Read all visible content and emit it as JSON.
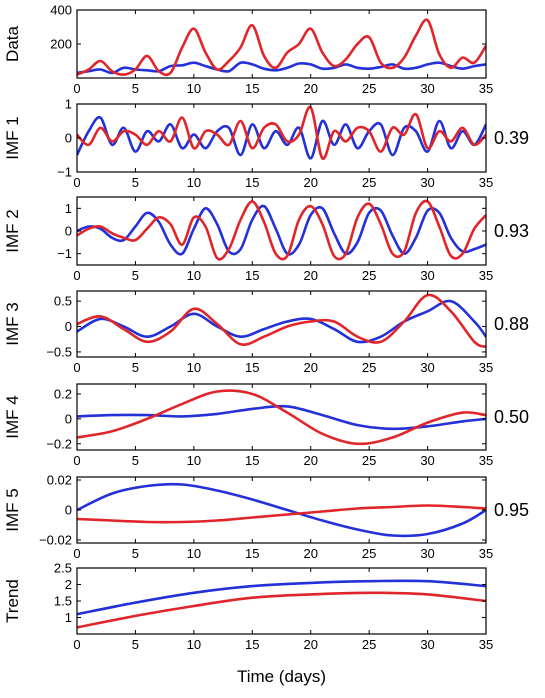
{
  "colors": {
    "series_a": "#2430d8",
    "series_b": "#e0262a",
    "axis": "#000000"
  },
  "chart_data": {
    "type": "line",
    "xlabel": "Time (days)",
    "xlim": [
      0,
      35
    ],
    "xticks": [
      "0",
      "5",
      "10",
      "15",
      "20",
      "25",
      "30",
      "35"
    ],
    "panels": [
      {
        "ylabel": "Data",
        "correlation": "",
        "ylim": [
          0,
          400
        ],
        "yticks": [
          {
            "v": 200,
            "t": "200"
          },
          {
            "v": 400,
            "t": "400"
          }
        ],
        "series": [
          {
            "x": [
              0,
              1,
              2,
              3,
              4,
              5,
              6,
              7,
              8,
              9,
              10,
              11,
              12,
              13,
              14,
              15,
              16,
              17,
              18,
              19,
              20,
              21,
              22,
              23,
              24,
              25,
              26,
              27,
              28,
              29,
              30,
              31,
              32,
              33,
              34,
              35
            ],
            "values": [
              30,
              40,
              50,
              30,
              60,
              50,
              45,
              40,
              70,
              75,
              90,
              70,
              50,
              40,
              90,
              80,
              55,
              45,
              60,
              85,
              80,
              55,
              60,
              80,
              60,
              55,
              65,
              80,
              55,
              60,
              80,
              90,
              70,
              55,
              70,
              80
            ]
          },
          {
            "x": [
              0,
              1,
              2,
              3,
              4,
              5,
              6,
              7,
              8,
              9,
              10,
              11,
              12,
              13,
              14,
              15,
              16,
              17,
              18,
              19,
              20,
              21,
              22,
              23,
              24,
              25,
              26,
              27,
              28,
              29,
              30,
              31,
              32,
              33,
              34,
              35
            ],
            "values": [
              20,
              50,
              100,
              40,
              20,
              50,
              130,
              40,
              30,
              180,
              290,
              150,
              50,
              100,
              180,
              310,
              130,
              60,
              150,
              200,
              290,
              150,
              70,
              110,
              200,
              240,
              90,
              60,
              120,
              250,
              340,
              140,
              60,
              120,
              90,
              190
            ]
          }
        ]
      },
      {
        "ylabel": "IMF 1",
        "correlation": "0.39",
        "ylim": [
          -1,
          1
        ],
        "yticks": [
          {
            "v": -1,
            "t": "−1"
          },
          {
            "v": 0,
            "t": "0"
          },
          {
            "v": 1,
            "t": "1"
          }
        ],
        "series": [
          {
            "x": [
              0,
              1,
              2,
              3,
              4,
              5,
              6,
              7,
              8,
              9,
              10,
              11,
              12,
              13,
              14,
              15,
              16,
              17,
              18,
              19,
              20,
              21,
              22,
              23,
              24,
              25,
              26,
              27,
              28,
              29,
              30,
              31,
              32,
              33,
              34,
              35
            ],
            "values": [
              -0.5,
              0.2,
              0.6,
              -0.2,
              0.3,
              -0.4,
              0.2,
              -0.1,
              0.4,
              -0.3,
              0.1,
              -0.3,
              0.2,
              0.3,
              -0.5,
              0.4,
              -0.3,
              0.2,
              -0.2,
              0.3,
              -0.6,
              0.5,
              -0.2,
              0.4,
              -0.3,
              0.2,
              0.4,
              -0.5,
              0.3,
              0.2,
              -0.4,
              0.5,
              -0.3,
              0.2,
              -0.2,
              0.4
            ]
          },
          {
            "x": [
              0,
              1,
              2,
              3,
              4,
              5,
              6,
              7,
              8,
              9,
              10,
              11,
              12,
              13,
              14,
              15,
              16,
              17,
              18,
              19,
              20,
              21,
              22,
              23,
              24,
              25,
              26,
              27,
              28,
              29,
              30,
              31,
              32,
              33,
              34,
              35
            ],
            "values": [
              0.1,
              -0.2,
              0.3,
              -0.1,
              0.2,
              0.1,
              -0.2,
              0.2,
              -0.1,
              0.6,
              -0.3,
              0.2,
              0.1,
              -0.2,
              0.5,
              -0.3,
              0.3,
              0.4,
              -0.1,
              0.1,
              0.9,
              -0.6,
              0.2,
              -0.1,
              0.3,
              0.2,
              -0.4,
              0.3,
              0.1,
              0.7,
              -0.3,
              0.2,
              -0.1,
              0.3,
              -0.2,
              0.1
            ]
          }
        ]
      },
      {
        "ylabel": "IMF 2",
        "correlation": "0.93",
        "ylim": [
          -1.5,
          1.5
        ],
        "yticks": [
          {
            "v": -1,
            "t": "−1"
          },
          {
            "v": 0,
            "t": "0"
          },
          {
            "v": 1,
            "t": "1"
          }
        ],
        "series": [
          {
            "x": [
              0,
              1,
              2,
              3,
              4,
              5,
              6,
              7,
              8,
              9,
              10,
              11,
              12,
              13,
              14,
              15,
              16,
              17,
              18,
              19,
              20,
              21,
              22,
              23,
              24,
              25,
              26,
              27,
              28,
              29,
              30,
              31,
              32,
              33,
              34,
              35
            ],
            "values": [
              0,
              0.2,
              0.1,
              -0.3,
              -0.4,
              0.2,
              0.8,
              0.4,
              -0.6,
              -1.0,
              0.1,
              1.0,
              0.3,
              -0.9,
              -0.8,
              0.5,
              1.1,
              0.1,
              -1.0,
              -0.6,
              0.7,
              1.0,
              -0.1,
              -1.0,
              -0.5,
              0.8,
              0.9,
              -0.2,
              -1.0,
              -0.3,
              0.9,
              0.8,
              -0.3,
              -0.9,
              -0.8,
              -0.6
            ]
          },
          {
            "x": [
              0,
              1,
              2,
              3,
              4,
              5,
              6,
              7,
              8,
              9,
              10,
              11,
              12,
              13,
              14,
              15,
              16,
              17,
              18,
              19,
              20,
              21,
              22,
              23,
              24,
              25,
              26,
              27,
              28,
              29,
              30,
              31,
              32,
              33,
              34,
              35
            ],
            "values": [
              -0.2,
              0.1,
              0.2,
              -0.1,
              -0.3,
              -0.4,
              0.1,
              0.6,
              0.3,
              -0.6,
              0.6,
              0.2,
              -1.2,
              -0.8,
              0.5,
              1.3,
              0.4,
              -1.0,
              -1.1,
              0.5,
              1.1,
              0.3,
              -1.1,
              -1.0,
              0.6,
              1.2,
              0.3,
              -1.0,
              -0.9,
              0.8,
              1.3,
              0.2,
              -1.1,
              -1.0,
              0.1,
              0.7
            ]
          }
        ]
      },
      {
        "ylabel": "IMF 3",
        "correlation": "0.88",
        "ylim": [
          -0.6,
          0.7
        ],
        "yticks": [
          {
            "v": -0.5,
            "t": "−0.5"
          },
          {
            "v": 0,
            "t": "0"
          },
          {
            "v": 0.5,
            "t": "0.5"
          }
        ],
        "series": [
          {
            "x": [
              0,
              2,
              4,
              6,
              8,
              10,
              12,
              14,
              16,
              18,
              20,
              22,
              24,
              26,
              28,
              30,
              32,
              34,
              35
            ],
            "values": [
              -0.1,
              0.15,
              0.0,
              -0.2,
              0.0,
              0.25,
              0.0,
              -0.2,
              -0.05,
              0.1,
              0.15,
              -0.05,
              -0.3,
              -0.2,
              0.1,
              0.3,
              0.5,
              0.1,
              -0.2
            ]
          },
          {
            "x": [
              0,
              2,
              4,
              6,
              8,
              10,
              12,
              14,
              16,
              18,
              20,
              22,
              24,
              26,
              28,
              30,
              32,
              34,
              35
            ],
            "values": [
              0.05,
              0.2,
              -0.05,
              -0.3,
              -0.1,
              0.35,
              0.05,
              -0.35,
              -0.2,
              0.0,
              0.1,
              0.1,
              -0.2,
              -0.3,
              0.1,
              0.62,
              0.3,
              -0.3,
              -0.4
            ]
          }
        ]
      },
      {
        "ylabel": "IMF 4",
        "correlation": "0.50",
        "ylim": [
          -0.25,
          0.28
        ],
        "yticks": [
          {
            "v": -0.2,
            "t": "−0.2"
          },
          {
            "v": 0,
            "t": "0"
          },
          {
            "v": 0.2,
            "t": "0.2"
          }
        ],
        "series": [
          {
            "x": [
              0,
              3,
              6,
              9,
              12,
              15,
              18,
              21,
              24,
              27,
              30,
              33,
              35
            ],
            "values": [
              0.02,
              0.03,
              0.03,
              0.02,
              0.04,
              0.08,
              0.1,
              0.03,
              -0.05,
              -0.08,
              -0.06,
              -0.02,
              0.0
            ]
          },
          {
            "x": [
              0,
              3,
              6,
              9,
              12,
              15,
              18,
              21,
              24,
              27,
              30,
              33,
              35
            ],
            "values": [
              -0.15,
              -0.1,
              0.0,
              0.12,
              0.22,
              0.2,
              0.05,
              -0.12,
              -0.2,
              -0.15,
              -0.03,
              0.05,
              0.03
            ]
          }
        ]
      },
      {
        "ylabel": "IMF 5",
        "correlation": "0.95",
        "ylim": [
          -0.022,
          0.022
        ],
        "yticks": [
          {
            "v": -0.02,
            "t": "−0.02"
          },
          {
            "v": 0,
            "t": "0"
          },
          {
            "v": 0.02,
            "t": "0.02"
          }
        ],
        "series": [
          {
            "x": [
              0,
              3,
              6,
              9,
              12,
              15,
              18,
              21,
              24,
              27,
              30,
              33,
              35
            ],
            "values": [
              0.0,
              0.011,
              0.016,
              0.017,
              0.013,
              0.007,
              0.0,
              -0.007,
              -0.013,
              -0.017,
              -0.016,
              -0.009,
              0.0
            ]
          },
          {
            "x": [
              0,
              3,
              6,
              9,
              12,
              15,
              18,
              21,
              24,
              27,
              30,
              33,
              35
            ],
            "values": [
              -0.006,
              -0.007,
              -0.008,
              -0.008,
              -0.007,
              -0.005,
              -0.003,
              -0.001,
              0.001,
              0.002,
              0.003,
              0.002,
              0.001
            ]
          }
        ]
      },
      {
        "ylabel": "Trend",
        "correlation": "",
        "ylim": [
          0.5,
          2.5
        ],
        "yticks": [
          {
            "v": 1,
            "t": "1"
          },
          {
            "v": 1.5,
            "t": "1.5"
          },
          {
            "v": 2,
            "t": "2"
          },
          {
            "v": 2.5,
            "t": "2.5"
          }
        ],
        "series": [
          {
            "x": [
              0,
              5,
              10,
              15,
              20,
              25,
              30,
              35
            ],
            "values": [
              1.1,
              1.45,
              1.75,
              1.95,
              2.05,
              2.1,
              2.1,
              1.95
            ]
          },
          {
            "x": [
              0,
              5,
              10,
              15,
              20,
              25,
              30,
              35
            ],
            "values": [
              0.7,
              1.05,
              1.35,
              1.6,
              1.7,
              1.75,
              1.7,
              1.5
            ]
          }
        ]
      }
    ]
  }
}
